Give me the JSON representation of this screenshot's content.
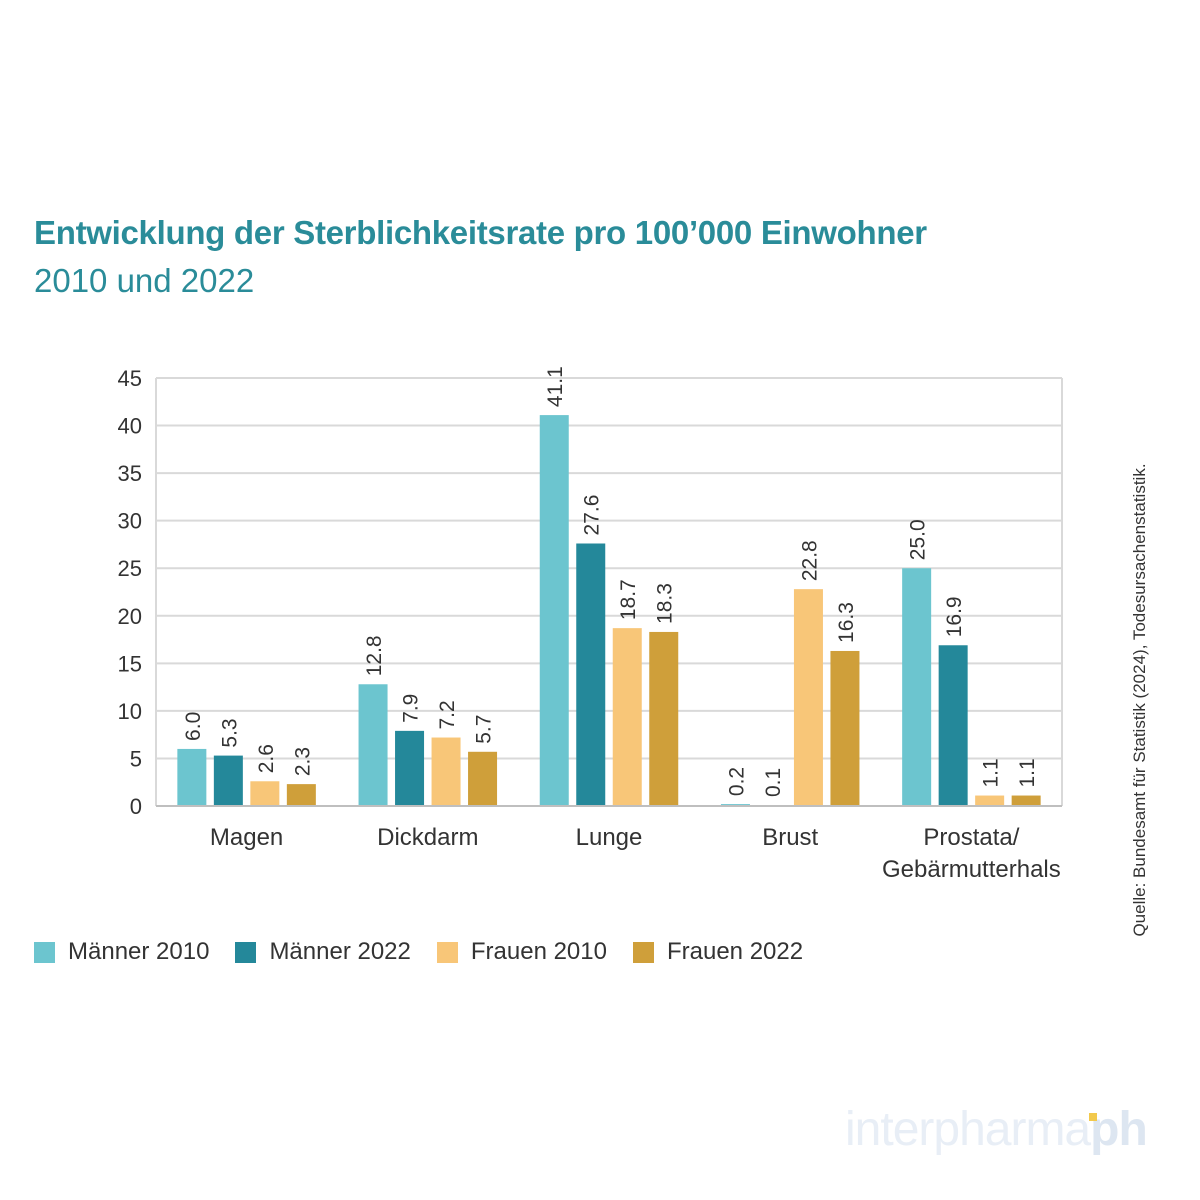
{
  "title": "Entwicklung der Sterblichkeitsrate pro 100’000 Einwohner",
  "subtitle": "2010 und 2022",
  "source_note": "Quelle: Bundesamt für Statistik (2024), Todesursachenstatistik.",
  "logo": {
    "main": "interpharma",
    "accent": "ph"
  },
  "colors": {
    "grid": "#d9d9d9",
    "text": "#333333",
    "title": "#2a8c99"
  },
  "chart_data": {
    "type": "bar",
    "categories": [
      [
        "Magen"
      ],
      [
        "Dickdarm"
      ],
      [
        "Lunge"
      ],
      [
        "Brust"
      ],
      [
        "Prostata/",
        "Gebärmutterhals"
      ]
    ],
    "series": [
      {
        "name": "Männer 2010",
        "color": "#6cc5cf",
        "values": [
          6.0,
          12.8,
          41.1,
          0.2,
          25.0
        ]
      },
      {
        "name": "Männer 2022",
        "color": "#24889a",
        "values": [
          5.3,
          7.9,
          27.6,
          0.1,
          16.9
        ]
      },
      {
        "name": "Frauen 2010",
        "color": "#f8c678",
        "values": [
          2.6,
          7.2,
          18.7,
          22.8,
          1.1
        ]
      },
      {
        "name": "Frauen 2022",
        "color": "#cf9f3a",
        "values": [
          2.3,
          5.7,
          18.3,
          16.3,
          1.1
        ]
      }
    ],
    "ylim": [
      0,
      45
    ],
    "yticks": [
      0,
      5,
      10,
      15,
      20,
      25,
      30,
      35,
      40,
      45
    ],
    "grid": true,
    "legend": "bottom-left",
    "data_labels": "rotated-vertical"
  }
}
